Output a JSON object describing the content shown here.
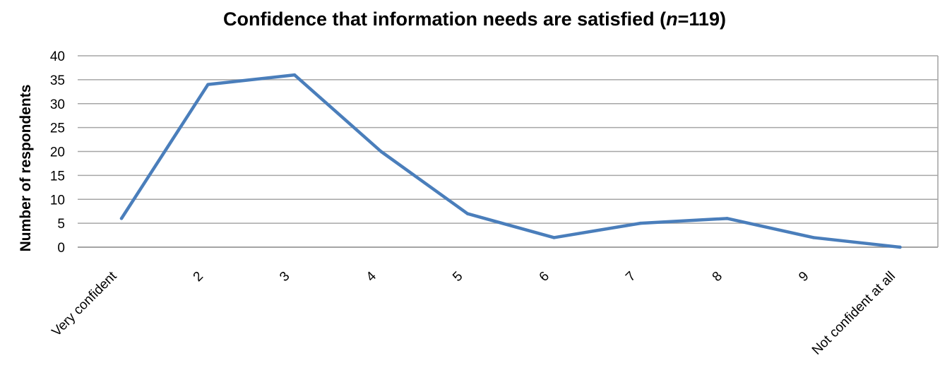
{
  "chart_data": {
    "type": "line",
    "title": {
      "prefix": "Confidence that information needs are satisfied (",
      "italic": "n",
      "suffix": "=119)"
    },
    "xlabel": "",
    "ylabel": "Number of respondents",
    "categories": [
      "Very confident",
      "2",
      "3",
      "4",
      "5",
      "6",
      "7",
      "8",
      "9",
      "Not confident at all"
    ],
    "series": [
      {
        "values": [
          6,
          34,
          36,
          20,
          7,
          2,
          5,
          6,
          2,
          0
        ],
        "color": "#4a7ebb"
      }
    ],
    "ylim": [
      0,
      40
    ],
    "yticks": [
      "0",
      "5",
      "10",
      "15",
      "20",
      "25",
      "30",
      "35",
      "40"
    ],
    "grid": true,
    "legend": "none"
  }
}
